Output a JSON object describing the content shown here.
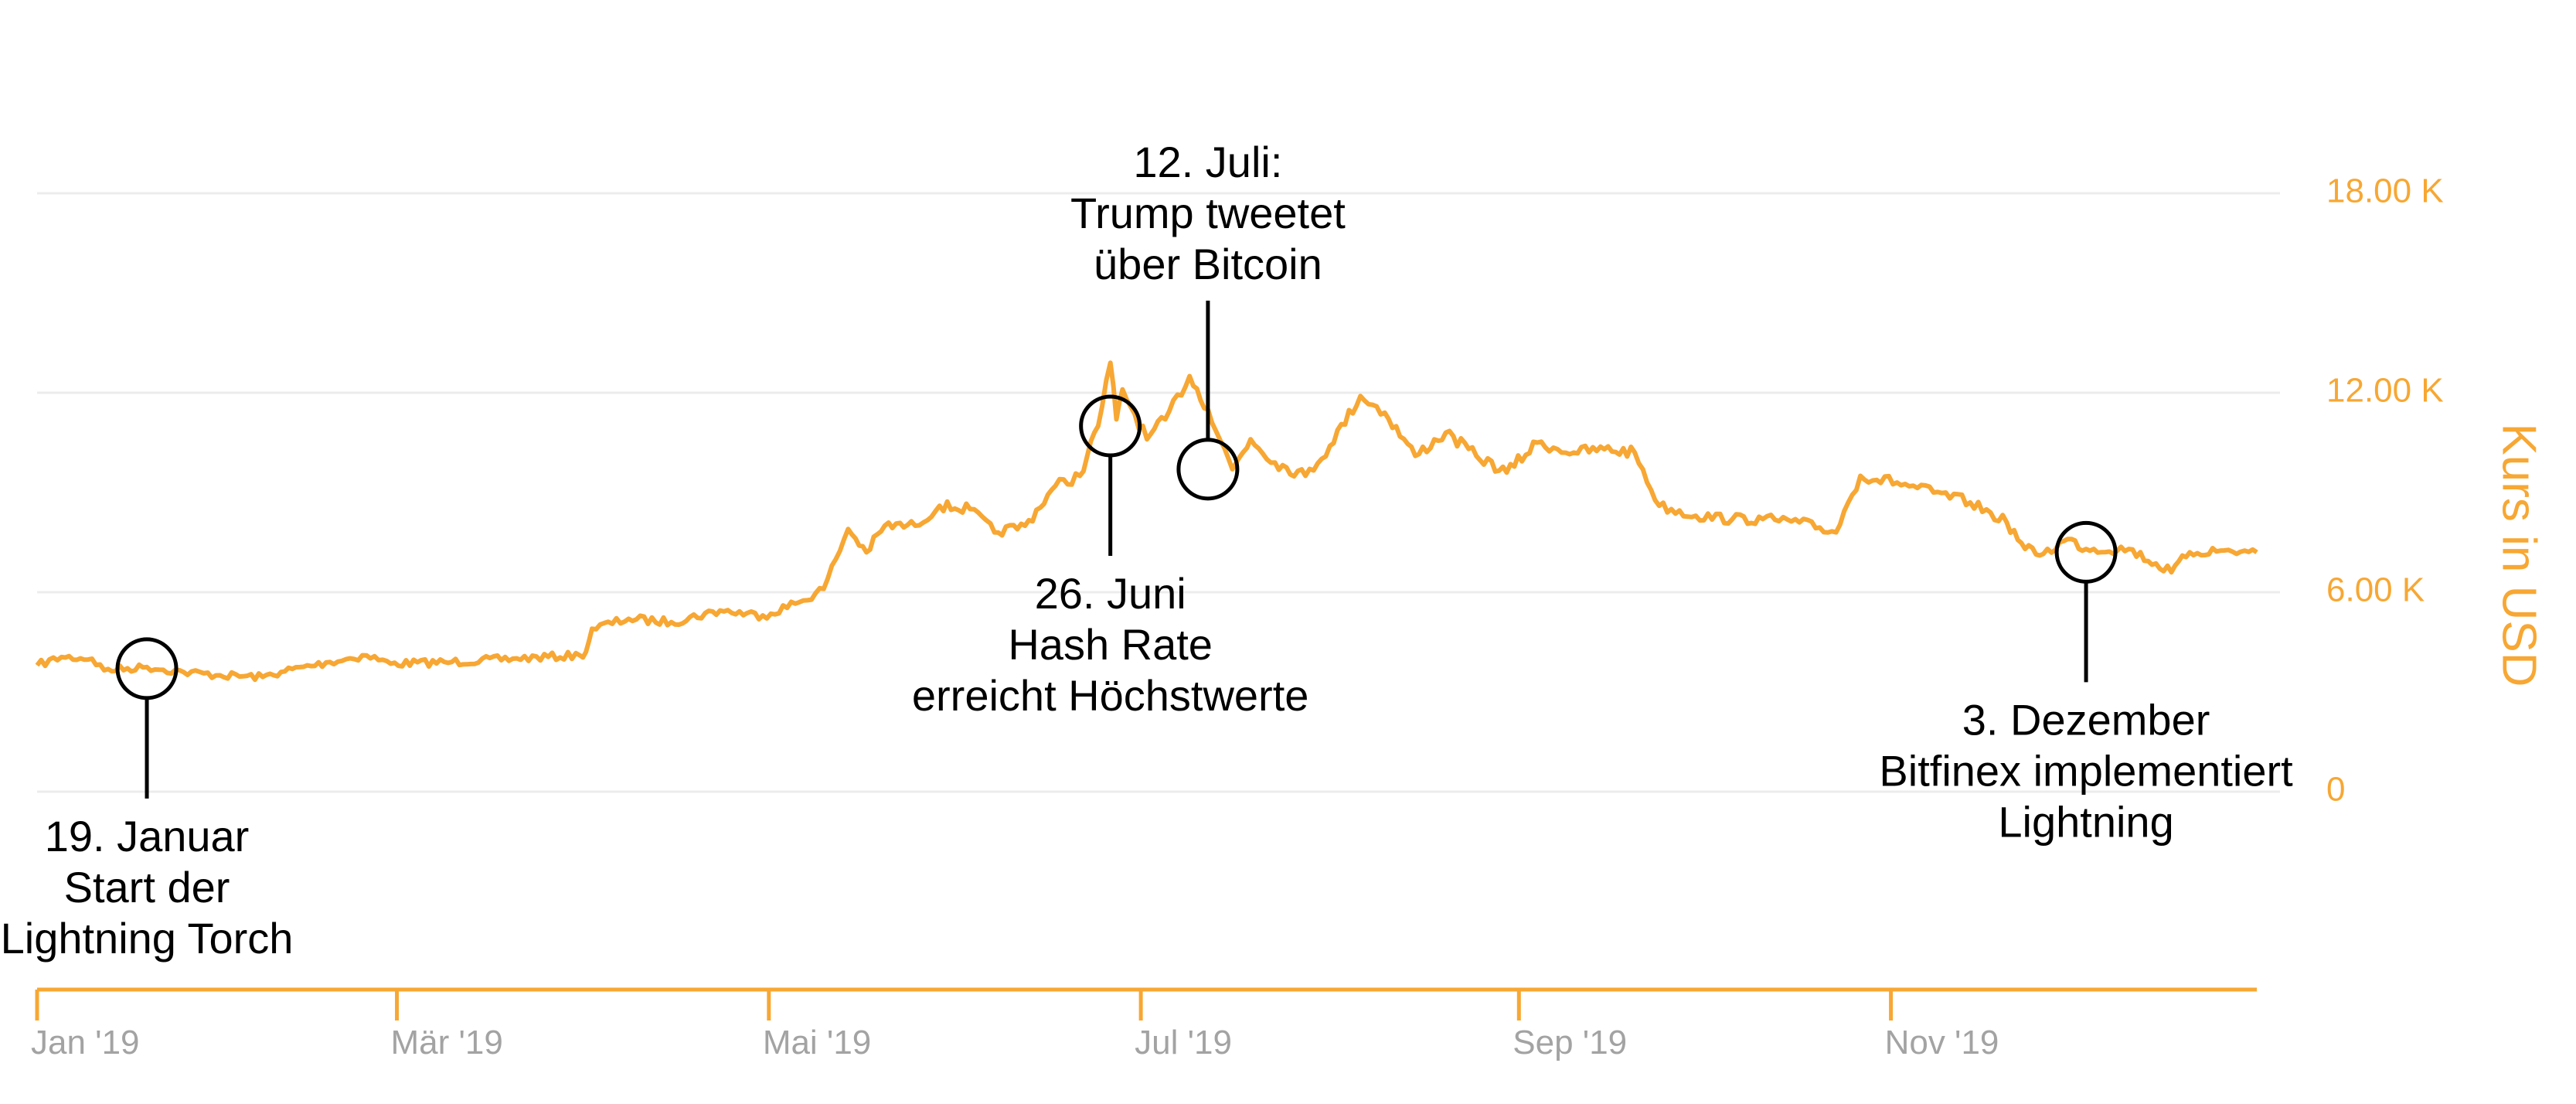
{
  "chart_data": {
    "type": "line",
    "title": "",
    "xlabel": "",
    "ylabel": "Kurs in USD",
    "ylim": [
      0,
      18000
    ],
    "grid": true,
    "y_ticks": [
      {
        "value": 18000,
        "label": "18.00 K"
      },
      {
        "value": 12000,
        "label": "12.00 K"
      },
      {
        "value": 6000,
        "label": "6.00 K"
      },
      {
        "value": 0,
        "label": "0"
      }
    ],
    "x_ticks": [
      {
        "date": "2019-01-01",
        "label": "Jan '19"
      },
      {
        "date": "2019-03-01",
        "label": "Mär '19"
      },
      {
        "date": "2019-05-01",
        "label": "Mai '19"
      },
      {
        "date": "2019-07-01",
        "label": "Jul '19"
      },
      {
        "date": "2019-09-01",
        "label": "Sep '19"
      },
      {
        "date": "2019-11-01",
        "label": "Nov '19"
      }
    ],
    "x_range": [
      "2019-01-01",
      "2019-12-31"
    ],
    "series": [
      {
        "color": "#f7a733",
        "points": [
          [
            "2019-01-01",
            3800
          ],
          [
            "2019-01-05",
            4050
          ],
          [
            "2019-01-10",
            4000
          ],
          [
            "2019-01-12",
            3650
          ],
          [
            "2019-01-19",
            3750
          ],
          [
            "2019-01-25",
            3600
          ],
          [
            "2019-01-31",
            3500
          ],
          [
            "2019-02-07",
            3450
          ],
          [
            "2019-02-10",
            3600
          ],
          [
            "2019-02-18",
            3900
          ],
          [
            "2019-02-24",
            4100
          ],
          [
            "2019-02-28",
            3850
          ],
          [
            "2019-03-10",
            3900
          ],
          [
            "2019-03-20",
            4000
          ],
          [
            "2019-03-31",
            4100
          ],
          [
            "2019-04-01",
            4200
          ],
          [
            "2019-04-02",
            4900
          ],
          [
            "2019-04-08",
            5200
          ],
          [
            "2019-04-15",
            5100
          ],
          [
            "2019-04-23",
            5450
          ],
          [
            "2019-04-30",
            5300
          ],
          [
            "2019-05-06",
            5700
          ],
          [
            "2019-05-10",
            6100
          ],
          [
            "2019-05-12",
            7000
          ],
          [
            "2019-05-14",
            7900
          ],
          [
            "2019-05-17",
            7200
          ],
          [
            "2019-05-20",
            8000
          ],
          [
            "2019-05-25",
            8000
          ],
          [
            "2019-05-29",
            8600
          ],
          [
            "2019-06-03",
            8500
          ],
          [
            "2019-06-07",
            7800
          ],
          [
            "2019-06-12",
            8000
          ],
          [
            "2019-06-17",
            9200
          ],
          [
            "2019-06-21",
            9500
          ],
          [
            "2019-06-24",
            11000
          ],
          [
            "2019-06-26",
            12900
          ],
          [
            "2019-06-27",
            11200
          ],
          [
            "2019-06-28",
            12100
          ],
          [
            "2019-07-02",
            10600
          ],
          [
            "2019-07-05",
            11200
          ],
          [
            "2019-07-09",
            12500
          ],
          [
            "2019-07-12",
            11500
          ],
          [
            "2019-07-16",
            9700
          ],
          [
            "2019-07-19",
            10600
          ],
          [
            "2019-07-23",
            9900
          ],
          [
            "2019-07-28",
            9500
          ],
          [
            "2019-08-01",
            10400
          ],
          [
            "2019-08-06",
            11900
          ],
          [
            "2019-08-10",
            11400
          ],
          [
            "2019-08-15",
            10100
          ],
          [
            "2019-08-20",
            10800
          ],
          [
            "2019-08-25",
            10100
          ],
          [
            "2019-08-30",
            9600
          ],
          [
            "2019-09-04",
            10500
          ],
          [
            "2019-09-10",
            10200
          ],
          [
            "2019-09-15",
            10300
          ],
          [
            "2019-09-20",
            10200
          ],
          [
            "2019-09-24",
            8600
          ],
          [
            "2019-09-30",
            8300
          ],
          [
            "2019-10-06",
            8200
          ],
          [
            "2019-10-11",
            8200
          ],
          [
            "2019-10-17",
            8100
          ],
          [
            "2019-10-23",
            7800
          ],
          [
            "2019-10-25",
            8700
          ],
          [
            "2019-10-27",
            9500
          ],
          [
            "2019-11-02",
            9300
          ],
          [
            "2019-11-08",
            9000
          ],
          [
            "2019-11-14",
            8700
          ],
          [
            "2019-11-20",
            8100
          ],
          [
            "2019-11-23",
            7300
          ],
          [
            "2019-11-26",
            7150
          ],
          [
            "2019-11-30",
            7600
          ],
          [
            "2019-12-03",
            7300
          ],
          [
            "2019-12-10",
            7300
          ],
          [
            "2019-12-17",
            6600
          ],
          [
            "2019-12-20",
            7200
          ],
          [
            "2019-12-25",
            7250
          ],
          [
            "2019-12-31",
            7200
          ]
        ]
      }
    ],
    "annotations": [
      {
        "date": "2019-01-19",
        "value": 3700,
        "lines": [
          "19. Januar",
          "Start der",
          "Lightning Torch"
        ],
        "position": "below"
      },
      {
        "date": "2019-06-26",
        "value": 11000,
        "lines": [
          "26. Juni",
          "Hash Rate",
          "erreicht Höchstwerte"
        ],
        "position": "below"
      },
      {
        "date": "2019-07-12",
        "value": 9700,
        "lines": [
          "12. Juli:",
          "Trump tweetet",
          "über Bitcoin"
        ],
        "position": "above"
      },
      {
        "date": "2019-12-03",
        "value": 7200,
        "lines": [
          "3. Dezember",
          "Bitfinex implementiert",
          "Lightning"
        ],
        "position": "below"
      }
    ]
  }
}
